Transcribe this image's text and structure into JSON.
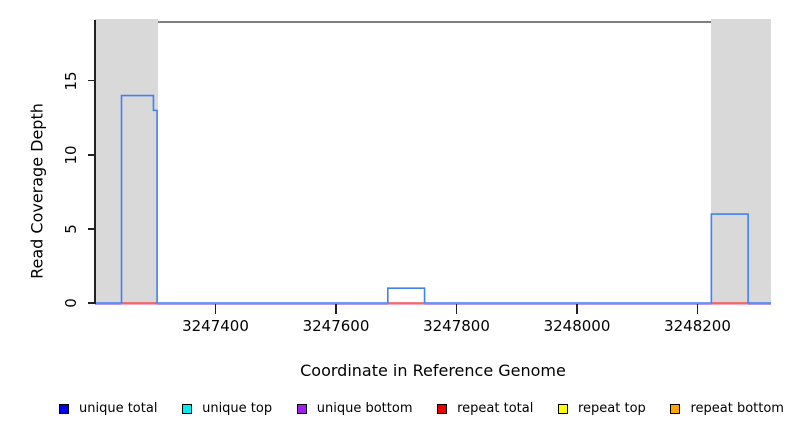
{
  "chart_data": {
    "type": "area",
    "title": "",
    "xlabel": "Coordinate in Reference Genome",
    "ylabel": "Read Coverage Depth",
    "xlim": [
      3247200,
      3248322
    ],
    "ylim": [
      0,
      19.1
    ],
    "x_ticks": [
      3247400,
      3247600,
      3247800,
      3248000,
      3248200
    ],
    "y_ticks": [
      0,
      5,
      10,
      15
    ],
    "grid": false,
    "legend_position": "bottom",
    "shaded_regions": [
      {
        "start": 3247200,
        "end": 3247304
      },
      {
        "start": 3248223,
        "end": 3248322
      }
    ],
    "series": [
      {
        "name": "unique total",
        "segments": [
          {
            "start": 3247244,
            "end": 3247297,
            "depth": 14
          },
          {
            "start": 3247297,
            "end": 3247303,
            "depth": 13
          },
          {
            "start": 3247686,
            "end": 3247747,
            "depth": 1
          },
          {
            "start": 3248223,
            "end": 3248284,
            "depth": 6
          }
        ],
        "baseline_depth": 0
      },
      {
        "name": "unique top",
        "segments": [],
        "baseline_depth": null
      },
      {
        "name": "unique bottom",
        "segments": [],
        "baseline_depth": 0
      },
      {
        "name": "repeat total",
        "segments": [],
        "baseline_depth": 0,
        "visible_baseline_segments": [
          {
            "start": 3247244,
            "end": 3247303
          },
          {
            "start": 3247686,
            "end": 3247747
          },
          {
            "start": 3248223,
            "end": 3248284
          }
        ]
      },
      {
        "name": "repeat top",
        "segments": [],
        "baseline_depth": null
      },
      {
        "name": "repeat bottom",
        "segments": [],
        "baseline_depth": null
      }
    ],
    "legend": [
      {
        "label": "unique total",
        "color": "#0000EE"
      },
      {
        "label": "unique top",
        "color": "#00EEEE"
      },
      {
        "label": "unique bottom",
        "color": "#A020F0"
      },
      {
        "label": "repeat total",
        "color": "#EE0000"
      },
      {
        "label": "repeat top",
        "color": "#FFFF00"
      },
      {
        "label": "repeat bottom",
        "color": "#FFA500"
      }
    ],
    "colors": {
      "coverage_line": "#4181F2",
      "baseline_blue": "#5168EE",
      "baseline_purple": "#AF97F2",
      "baseline_red": "#EF5350",
      "baseline_pink": "#F2A9C4",
      "shaded_region": "#D9D9D9",
      "plot_border": "#7F7F7F",
      "axis": "#222222"
    }
  }
}
